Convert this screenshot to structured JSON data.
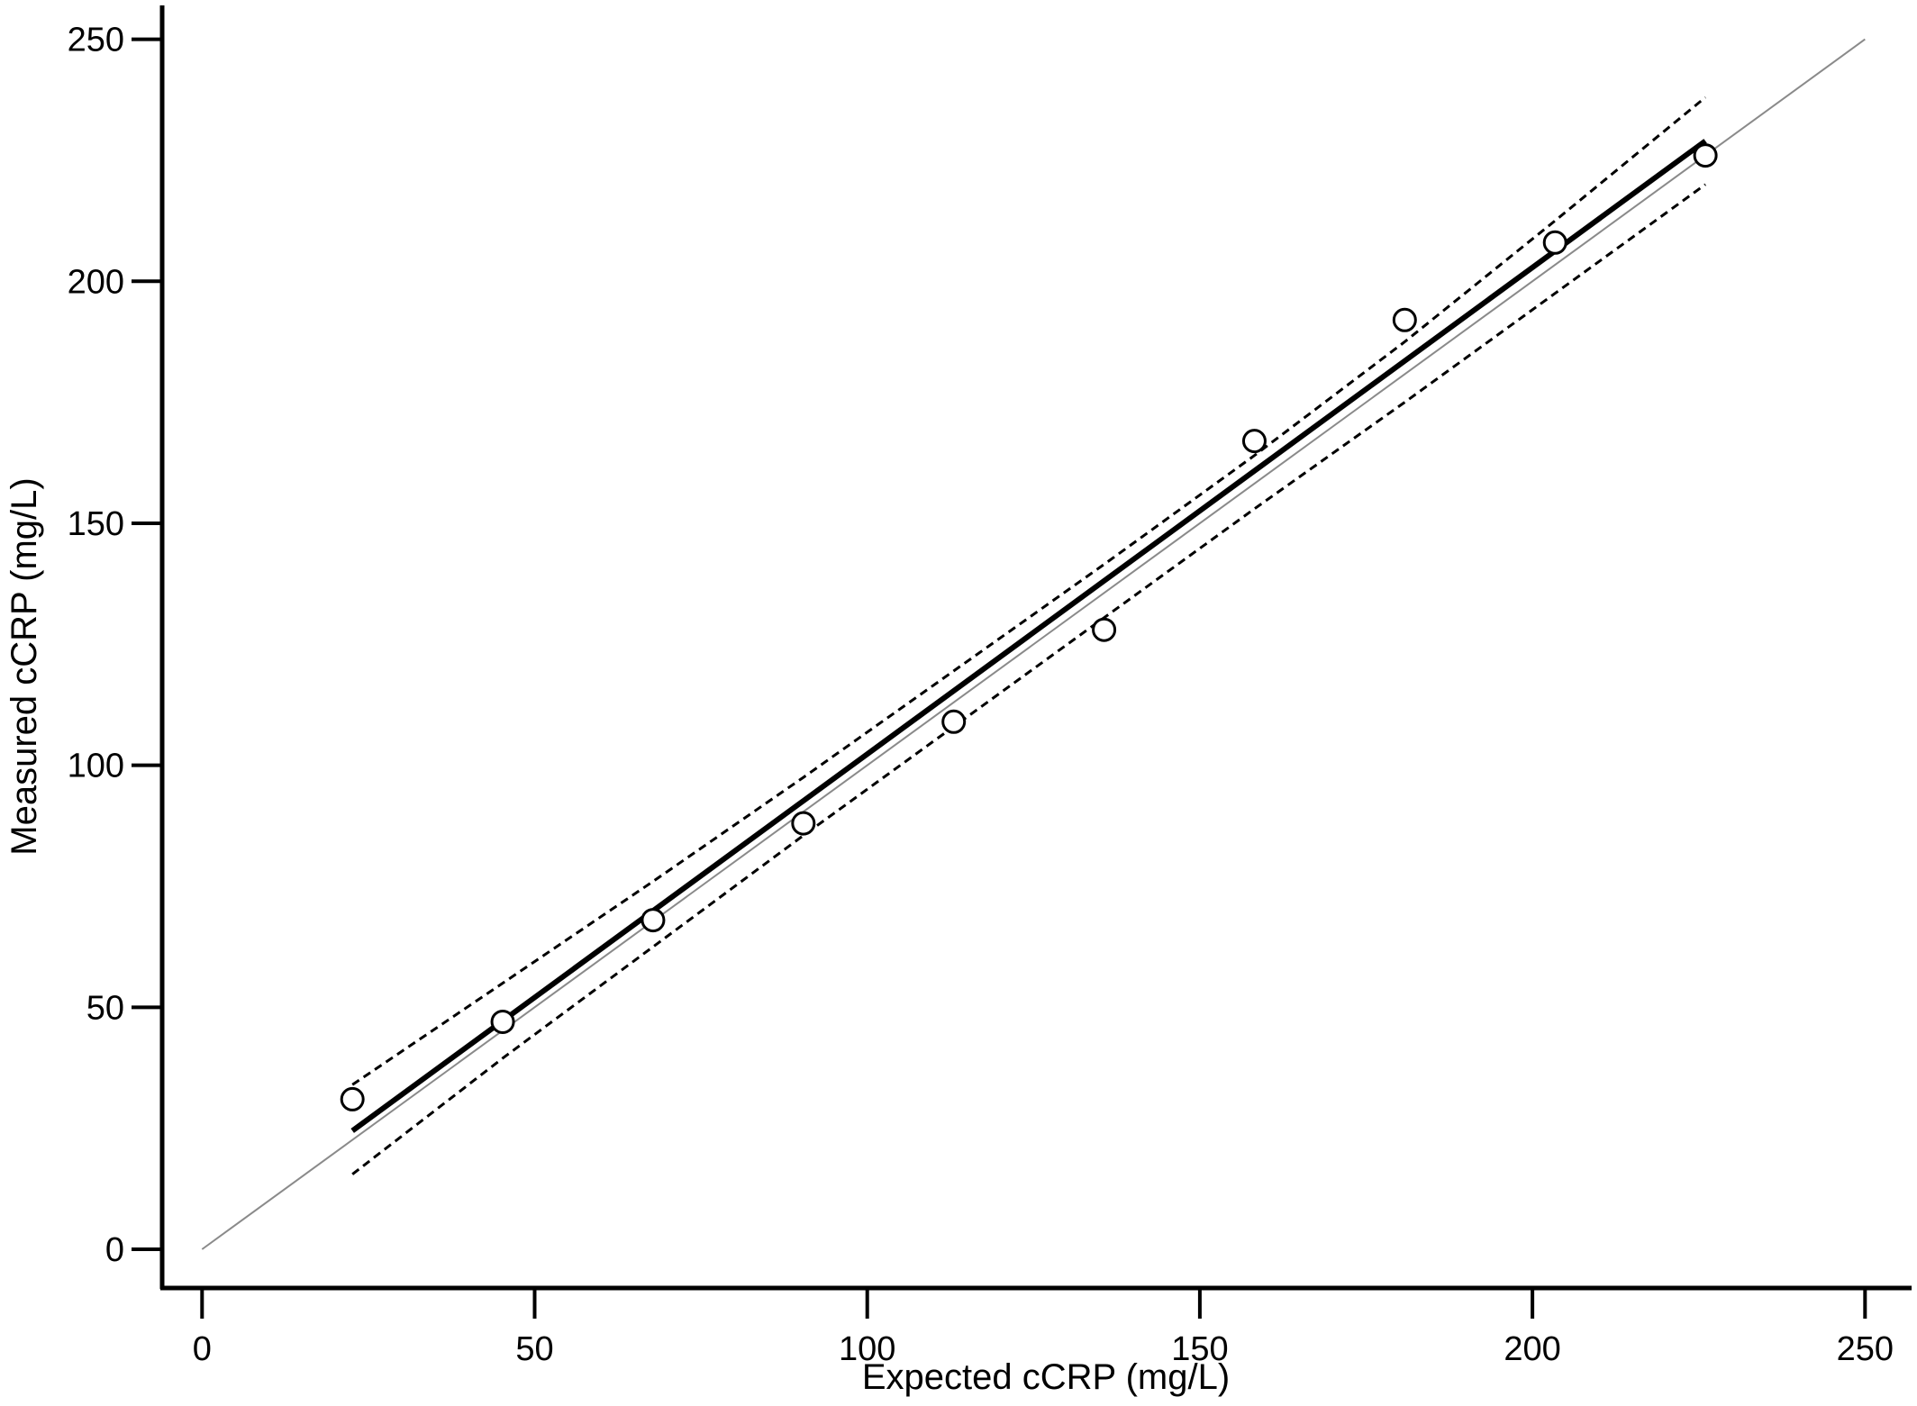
{
  "chart_data": {
    "type": "scatter",
    "title": "",
    "xlabel": "Expected cCRP (mg/L)",
    "ylabel": "Measured cCRP (mg/L)",
    "xlim": [
      -6,
      257
    ],
    "ylim": [
      -8,
      257
    ],
    "x_ticks": [
      0,
      50,
      100,
      150,
      200,
      250
    ],
    "y_ticks": [
      0,
      50,
      100,
      150,
      200,
      250
    ],
    "grid": false,
    "legend": "none",
    "series": [
      {
        "kind": "points",
        "marker": "open-circle",
        "x": [
          22.6,
          45.2,
          67.8,
          90.4,
          113.0,
          135.6,
          158.2,
          180.8,
          203.4,
          226.0
        ],
        "y": [
          31,
          47,
          68,
          88,
          109,
          128,
          167,
          192,
          208,
          226
        ]
      },
      {
        "kind": "regression-line",
        "style": "solid-thick",
        "x": [
          22.6,
          226.0
        ],
        "y": [
          24.5,
          229
        ]
      },
      {
        "kind": "confidence-upper",
        "style": "dashed",
        "x": [
          22.6,
          45.2,
          67.8,
          90.4,
          113.0,
          135.6,
          158.2,
          180.8,
          203.4,
          226.0
        ],
        "y": [
          34.0,
          55.0,
          76.0,
          97.5,
          119.5,
          141.5,
          164.0,
          187.5,
          212.5,
          238.0
        ]
      },
      {
        "kind": "confidence-lower",
        "style": "dashed",
        "x": [
          22.6,
          45.2,
          67.8,
          90.4,
          113.0,
          135.6,
          158.2,
          180.8,
          203.4,
          226.0
        ],
        "y": [
          15.5,
          39.5,
          62.5,
          85.5,
          108.0,
          130.5,
          153.0,
          175.0,
          197.5,
          220.0
        ]
      },
      {
        "kind": "identity-line",
        "style": "thin-gray",
        "x": [
          0,
          250
        ],
        "y": [
          0,
          250
        ]
      }
    ],
    "colors": {
      "axis": "#000000",
      "points": "#000000",
      "regression": "#000000",
      "confidence": "#000000",
      "identity": "#8a8a8a"
    }
  }
}
